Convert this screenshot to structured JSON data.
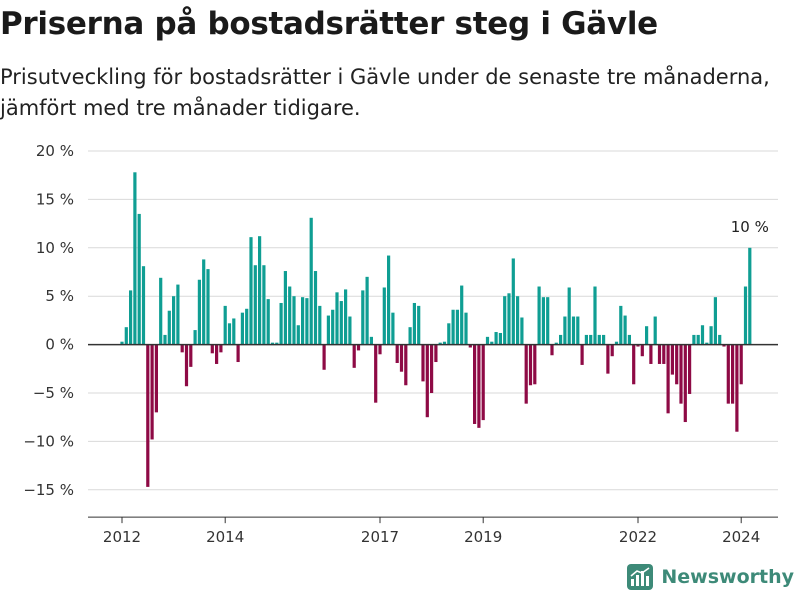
{
  "title": "Priserna på bostadsrätter steg i Gävle",
  "subtitle": "Prisutveckling för bostadsrätter i Gävle under de senaste tre månaderna, jämfört med tre månader tidigare.",
  "brand": "Newsworthy",
  "colors": {
    "positive": "#0f9e93",
    "negative": "#8e0a45",
    "grid": "#d9d9d9",
    "zero": "#333333",
    "brand": "#3d8a78"
  },
  "chart_data": {
    "type": "bar",
    "unit": "%",
    "ylim": [
      -17,
      20
    ],
    "yticks": [
      {
        "value": 20,
        "label": "20 %"
      },
      {
        "value": 15,
        "label": "15 %"
      },
      {
        "value": 10,
        "label": "10 %"
      },
      {
        "value": 5,
        "label": "5 %"
      },
      {
        "value": 0,
        "label": "0 %"
      },
      {
        "value": -5,
        "label": "−5 %"
      },
      {
        "value": -10,
        "label": "−10 %"
      },
      {
        "value": -15,
        "label": "−15 %"
      }
    ],
    "xticks": [
      {
        "index": 0,
        "label": "2012"
      },
      {
        "index": 24,
        "label": "2014"
      },
      {
        "index": 60,
        "label": "2017"
      },
      {
        "index": 84,
        "label": "2019"
      },
      {
        "index": 120,
        "label": "2022"
      },
      {
        "index": 144,
        "label": "2024"
      }
    ],
    "grid": true,
    "start": "2012-01",
    "frequency": "monthly",
    "values": [
      0.3,
      1.8,
      5.6,
      17.8,
      13.5,
      8.1,
      -14.7,
      -9.8,
      -7.0,
      6.9,
      1.0,
      3.5,
      5.0,
      6.2,
      -0.8,
      -4.3,
      -2.3,
      1.5,
      6.7,
      8.8,
      7.8,
      -0.9,
      -2.0,
      -0.8,
      4.0,
      2.2,
      2.7,
      -1.8,
      3.3,
      3.7,
      11.1,
      8.2,
      11.2,
      8.2,
      4.7,
      0.2,
      0.2,
      4.3,
      7.6,
      6.0,
      5.0,
      2.0,
      4.9,
      4.8,
      13.1,
      7.6,
      4.0,
      -2.6,
      3.0,
      3.6,
      5.4,
      4.5,
      5.7,
      2.9,
      -2.4,
      -0.6,
      5.6,
      7.0,
      0.8,
      -6.0,
      -1.0,
      5.9,
      9.2,
      3.3,
      -1.9,
      -2.8,
      -4.2,
      1.8,
      4.3,
      4.0,
      -3.8,
      -7.5,
      -5.0,
      -1.8,
      0.2,
      0.3,
      2.2,
      3.6,
      3.6,
      6.1,
      3.3,
      -0.3,
      -8.2,
      -8.6,
      -7.8,
      0.8,
      0.3,
      1.3,
      1.2,
      5.0,
      5.3,
      8.9,
      5.0,
      2.8,
      -6.1,
      -4.2,
      -4.1,
      6.0,
      4.9,
      4.9,
      -1.1,
      0.2,
      1.0,
      2.9,
      5.9,
      2.9,
      2.9,
      -2.1,
      1.0,
      1.0,
      6.0,
      1.0,
      1.0,
      -3.0,
      -1.2,
      0.3,
      4.0,
      3.0,
      1.0,
      -4.1,
      -0.2,
      -1.2,
      1.9,
      -2.0,
      2.9,
      -2.0,
      -2.0,
      -7.1,
      -3.1,
      -4.1,
      -6.1,
      -8.0,
      -5.1,
      1.0,
      1.0,
      2.0,
      0.2,
      1.9,
      4.9,
      1.0,
      -0.2,
      -6.1,
      -6.1,
      -9.0,
      -4.1,
      6.0,
      10.0
    ],
    "annotation": {
      "label": "10 %",
      "index": 146
    }
  }
}
